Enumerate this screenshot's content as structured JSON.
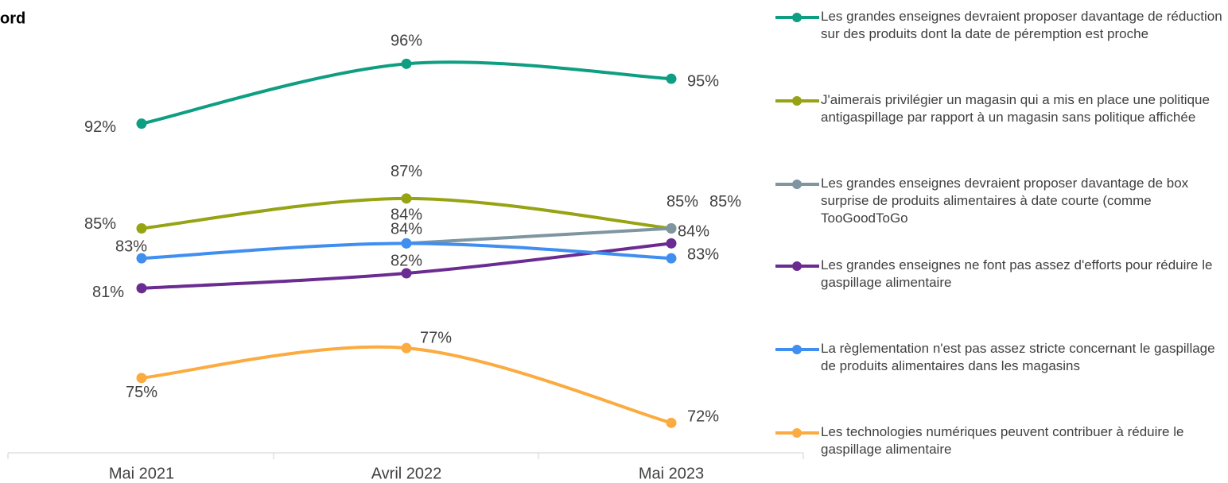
{
  "chart_data": {
    "type": "line",
    "title": "ord",
    "categories": [
      "Mai 2021",
      "Avril 2022",
      "Mai 2023"
    ],
    "ylim": [
      70,
      100
    ],
    "series": [
      {
        "name": "Les grandes enseignes devraient proposer davantage de réduction sur des produits dont la date de péremption est proche",
        "color": "#0e9e82",
        "values": [
          92,
          96,
          95
        ],
        "value_labels": [
          "92%",
          "96%",
          "95%"
        ]
      },
      {
        "name": "J'aimerais privilégier un magasin qui a mis en place une politique antigaspillage par rapport à un magasin sans politique affichée",
        "color": "#96a313",
        "values": [
          85,
          87,
          85
        ],
        "value_labels": [
          "85%",
          "87%",
          "85%"
        ]
      },
      {
        "name": "Les grandes enseignes devraient proposer davantage de box surprise de produits alimentaires à date courte (comme TooGoodToGo",
        "color": "#7f95a0",
        "values": [
          null,
          84,
          85
        ],
        "value_labels": [
          null,
          "84%",
          "85%"
        ]
      },
      {
        "name": "Les grandes enseignes ne font pas assez d'efforts pour réduire le gaspillage alimentaire",
        "color": "#6a2c91",
        "values": [
          81,
          82,
          84
        ],
        "value_labels": [
          "81%",
          "82%",
          "84%"
        ]
      },
      {
        "name": "La règlementation n'est pas assez stricte concernant le gaspillage de produits alimentaires dans les magasins",
        "color": "#3f8ef0",
        "values": [
          83,
          84,
          83
        ],
        "value_labels": [
          "83%",
          "84%",
          "83%"
        ]
      },
      {
        "name": " Les technologies numériques peuvent contribuer à réduire le gaspillage alimentaire",
        "color": "#fbab3f",
        "values": [
          75,
          77,
          72
        ],
        "value_labels": [
          "75%",
          "77%",
          "72%"
        ]
      }
    ]
  }
}
